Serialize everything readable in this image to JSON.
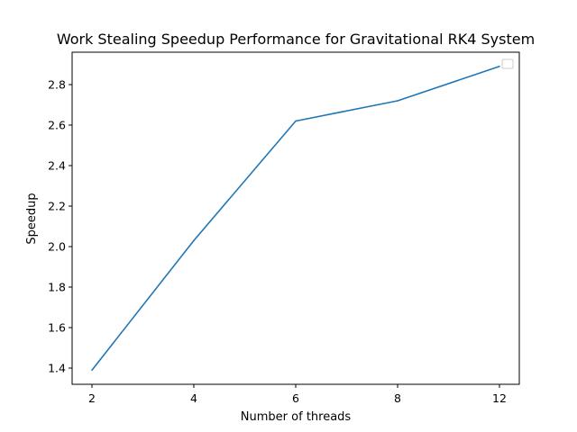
{
  "chart_data": {
    "type": "line",
    "title": "Work Stealing Speedup Performance for Gravitational RK4 System",
    "xlabel": "Number of threads",
    "ylabel": "Speedup",
    "categories": [
      "2",
      "4",
      "6",
      "8",
      "12"
    ],
    "series": [
      {
        "values": [
          1.39,
          2.03,
          2.62,
          2.72,
          2.89
        ],
        "color": "#1f77b4"
      }
    ],
    "yticks": [
      "1.4",
      "1.6",
      "1.8",
      "2.0",
      "2.2",
      "2.4",
      "2.6",
      "2.8"
    ],
    "ylim": [
      1.32,
      2.96
    ],
    "grid": false,
    "legend": {
      "placement": "upper right",
      "entries": []
    }
  }
}
